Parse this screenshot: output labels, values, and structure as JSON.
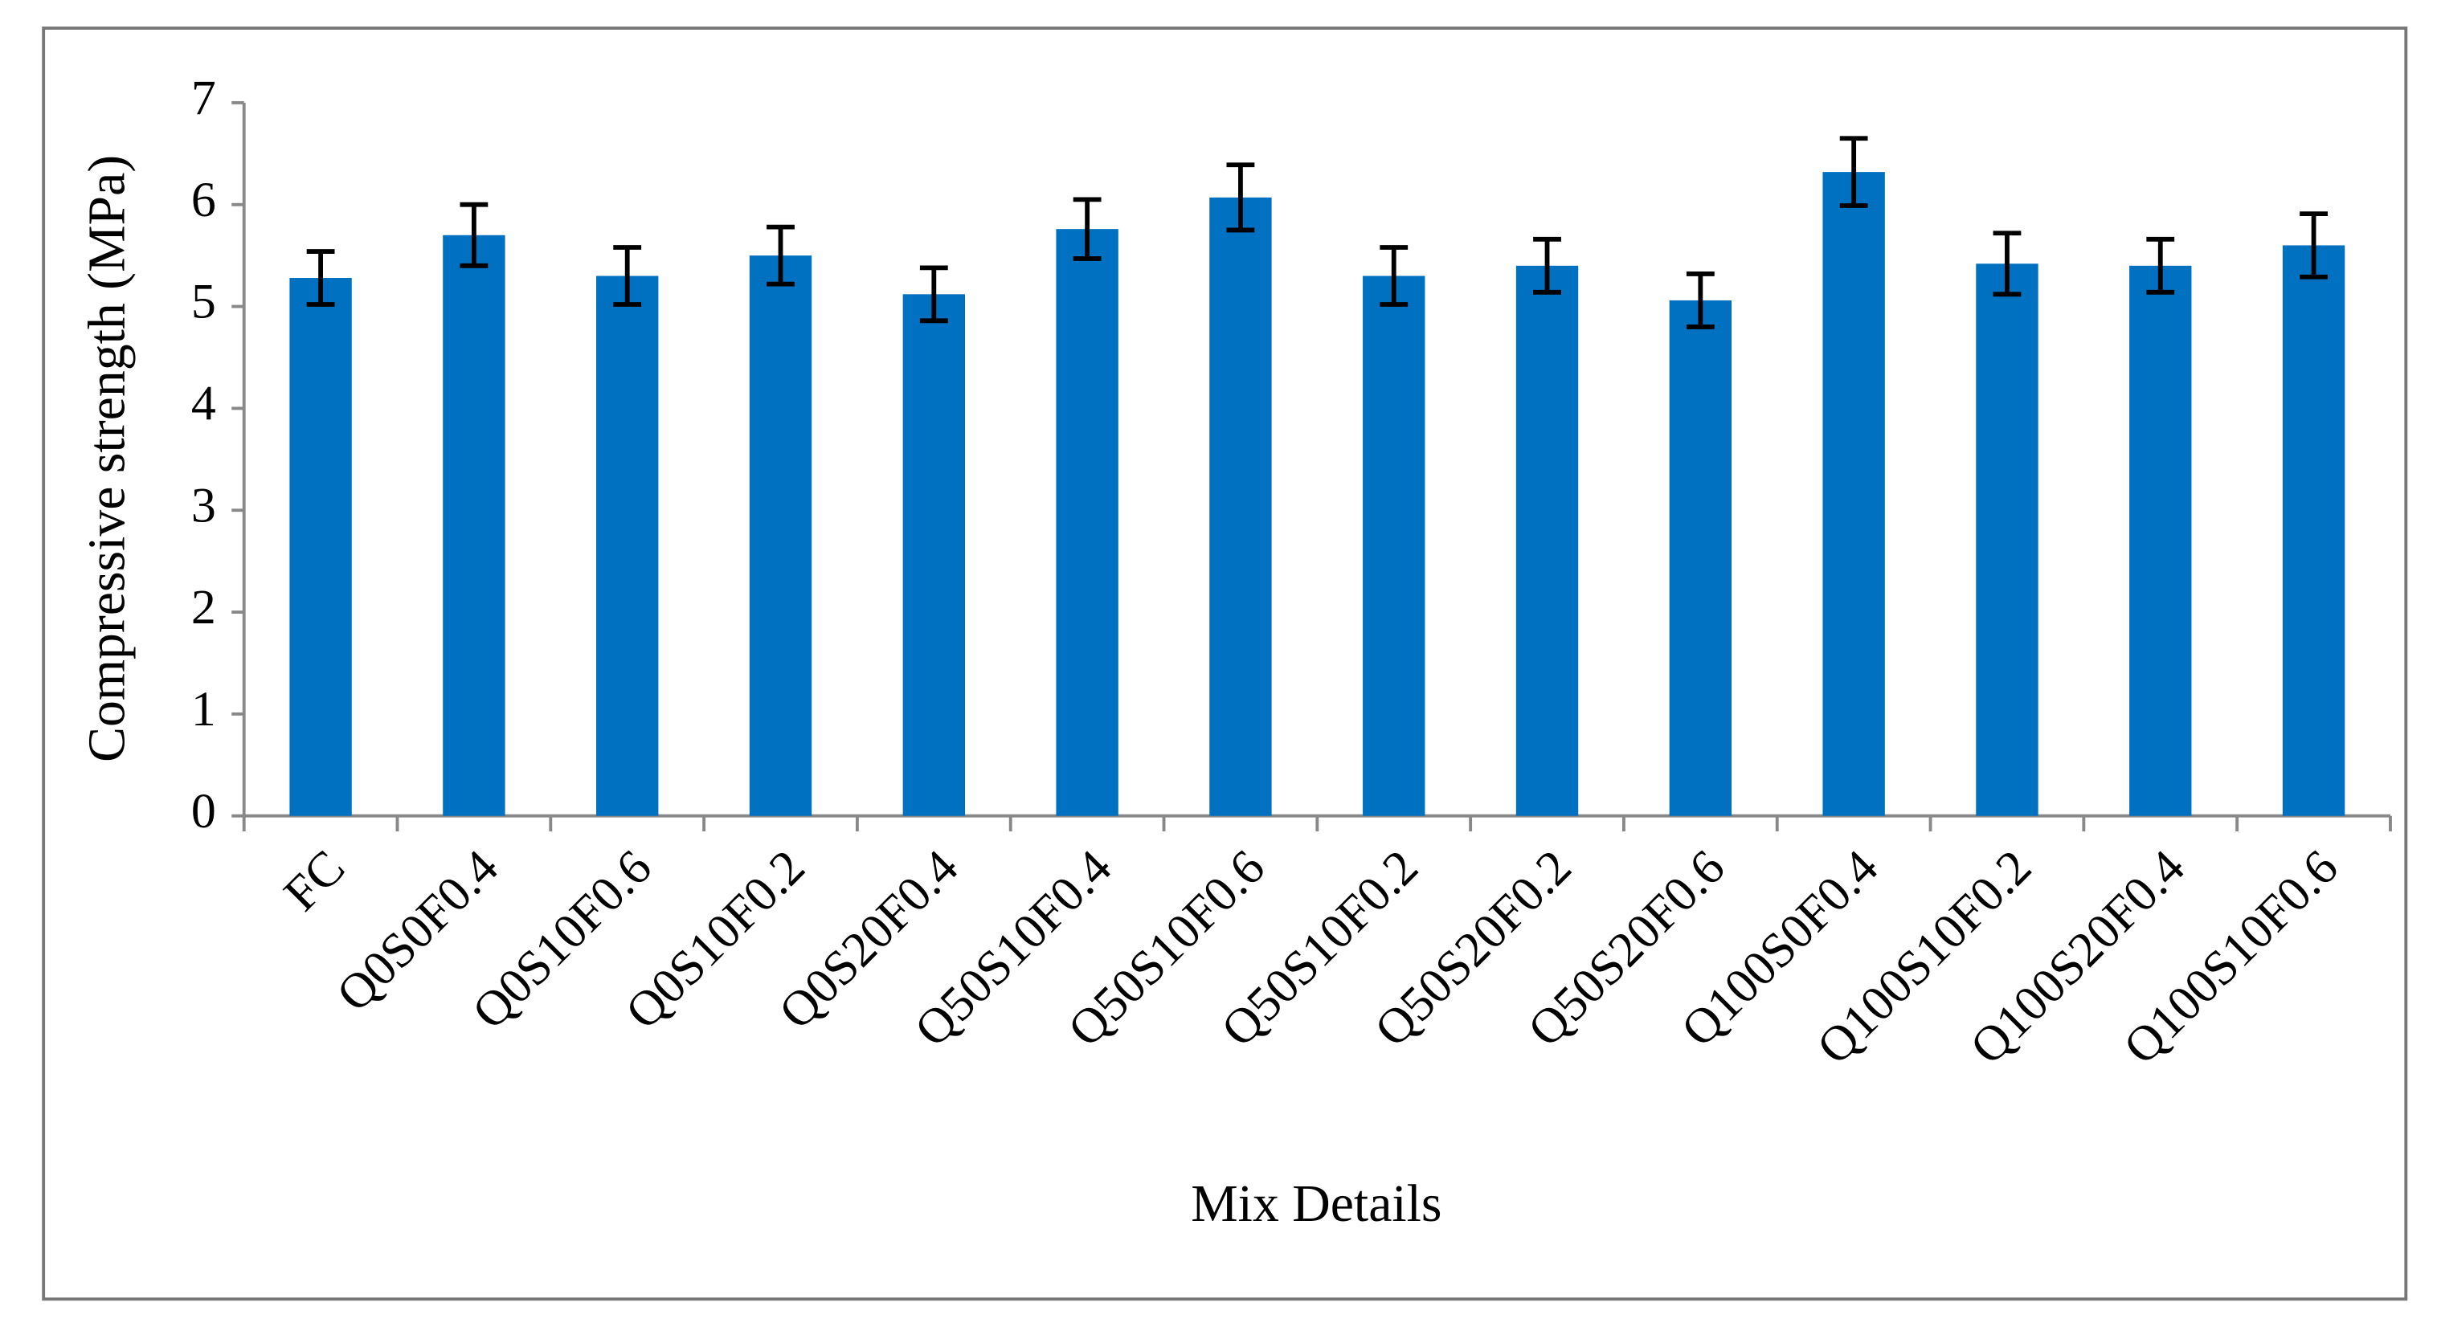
{
  "chart_data": {
    "type": "bar",
    "x_label": "Mix Details",
    "y_label": "Compressive strength (MPa)",
    "categories": [
      "FC",
      "Q0S0F0.4",
      "Q0S10F0.6",
      "Q0S10F0.2",
      "Q0S20F0.4",
      "Q50S10F0.4",
      "Q50S10F0.6",
      "Q50S10F0.2",
      "Q50S20F0.2",
      "Q50S20F0.6",
      "Q100S0F0.4",
      "Q100S10F0.2",
      "Q100S20F0.4",
      "Q100S10F0.6"
    ],
    "values": [
      5.28,
      5.7,
      5.3,
      5.5,
      5.12,
      5.76,
      6.07,
      5.3,
      5.4,
      5.06,
      6.32,
      5.42,
      5.4,
      5.6
    ],
    "errors": [
      0.26,
      0.3,
      0.28,
      0.28,
      0.26,
      0.29,
      0.32,
      0.28,
      0.26,
      0.26,
      0.33,
      0.3,
      0.26,
      0.31
    ],
    "color": "#0070c0",
    "ylim": [
      0,
      7
    ],
    "yticks": [
      0,
      1,
      2,
      3,
      4,
      5,
      6,
      7
    ],
    "grid": false
  }
}
